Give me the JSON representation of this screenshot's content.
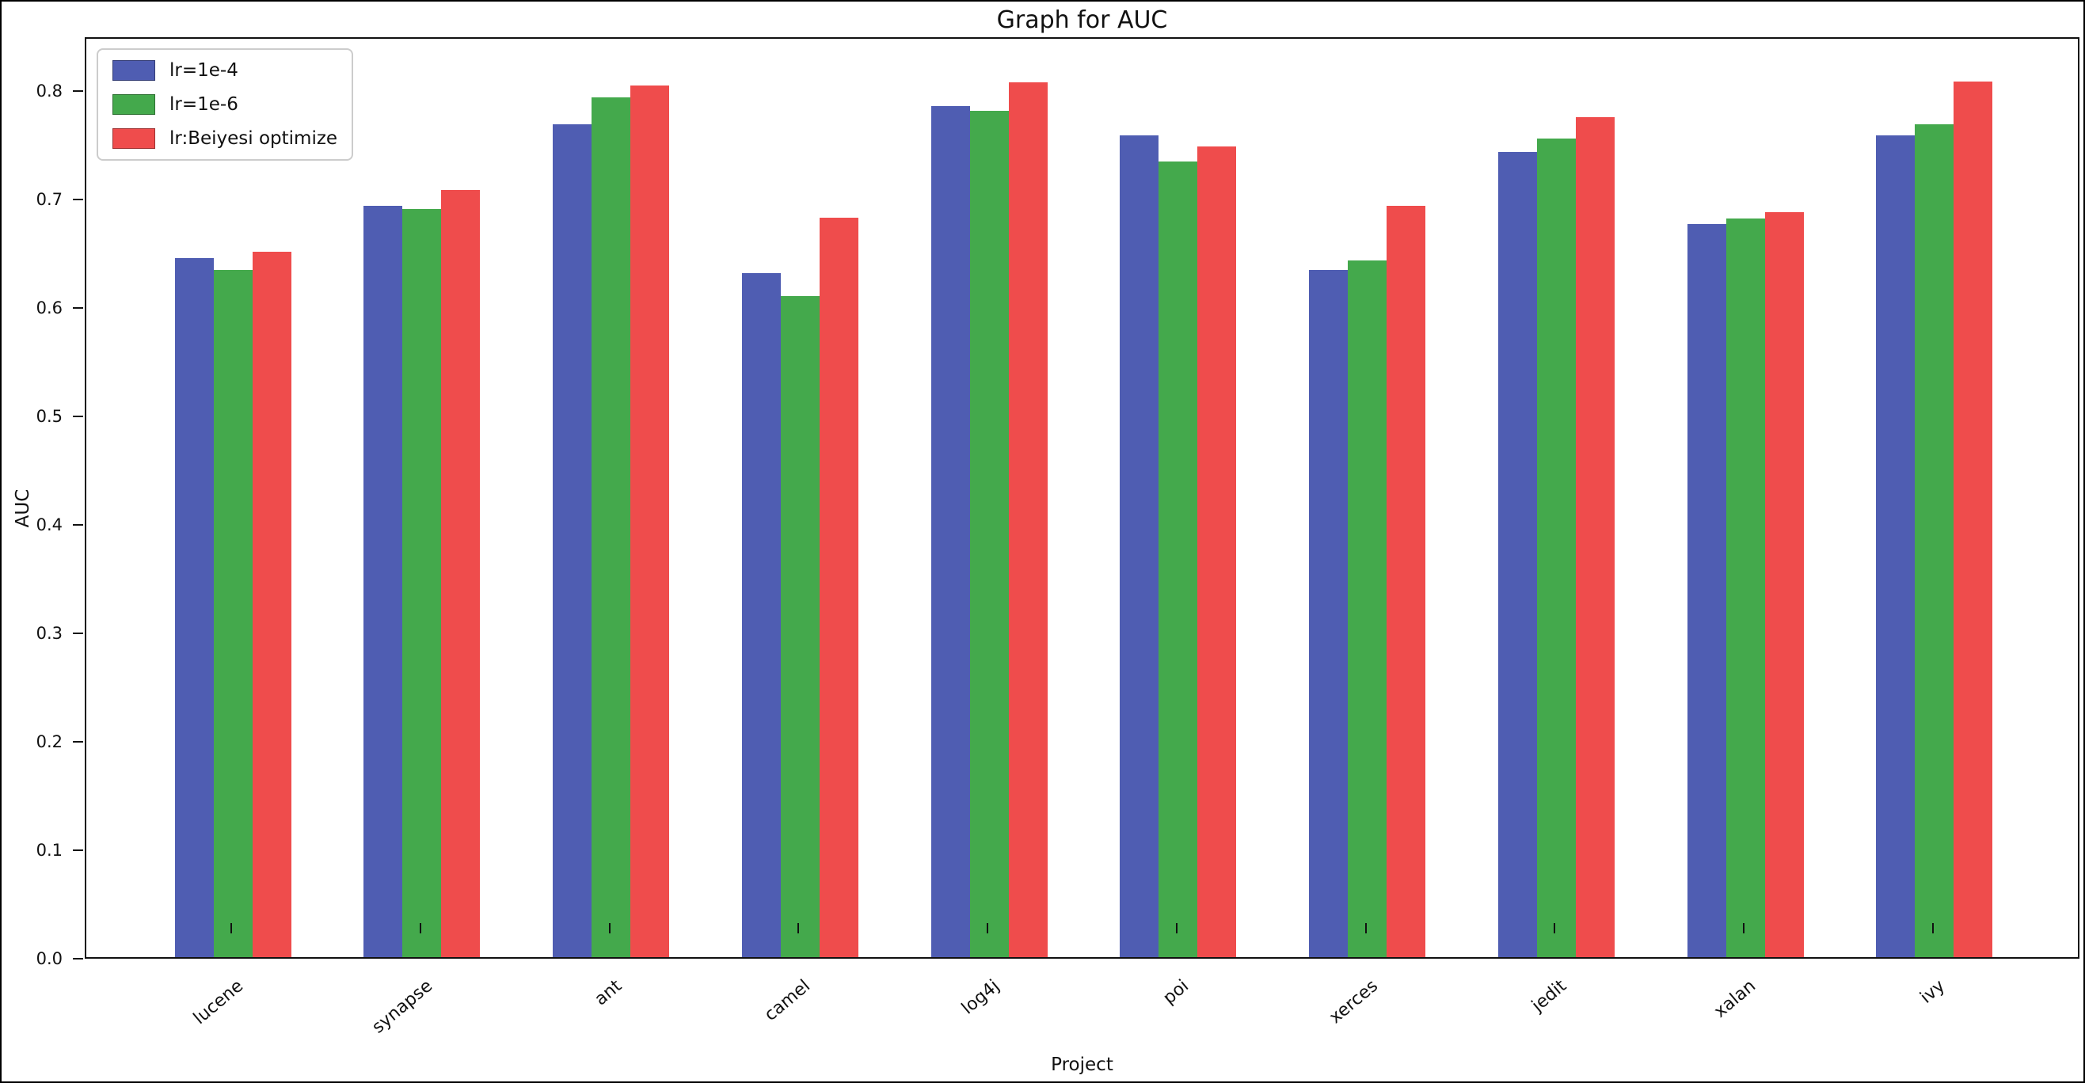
{
  "figure": {
    "title": "Graph for AUC",
    "xlabel": "Project",
    "ylabel": "AUC"
  },
  "chart_data": {
    "type": "bar",
    "title": "Graph for AUC",
    "xlabel": "Project",
    "ylabel": "AUC",
    "categories": [
      "lucene",
      "synapse",
      "ant",
      "camel",
      "log4j",
      "poi",
      "xerces",
      "jedit",
      "xalan",
      "ivy"
    ],
    "series": [
      {
        "name": "lr=1e-4",
        "color": "#4F5DB2",
        "values": [
          0.645,
          0.693,
          0.768,
          0.631,
          0.785,
          0.758,
          0.634,
          0.743,
          0.676,
          0.758
        ]
      },
      {
        "name": "lr=1e-6",
        "color": "#44A94C",
        "values": [
          0.634,
          0.69,
          0.793,
          0.61,
          0.781,
          0.734,
          0.643,
          0.755,
          0.681,
          0.768
        ]
      },
      {
        "name": "lr:Beiyesi optimize",
        "color": "#EF4C4C",
        "values": [
          0.651,
          0.708,
          0.804,
          0.682,
          0.807,
          0.748,
          0.693,
          0.775,
          0.687,
          0.808
        ]
      }
    ],
    "ylim": [
      0.0,
      0.85
    ],
    "yticks": [
      0.0,
      0.1,
      0.2,
      0.3,
      0.4,
      0.5,
      0.6,
      0.7,
      0.8
    ],
    "grid": false,
    "legend_position": "upper left",
    "bar_color_blue": "#4F5DB2",
    "bar_color_green": "#44A94C",
    "bar_color_red": "#EF4C4C"
  }
}
